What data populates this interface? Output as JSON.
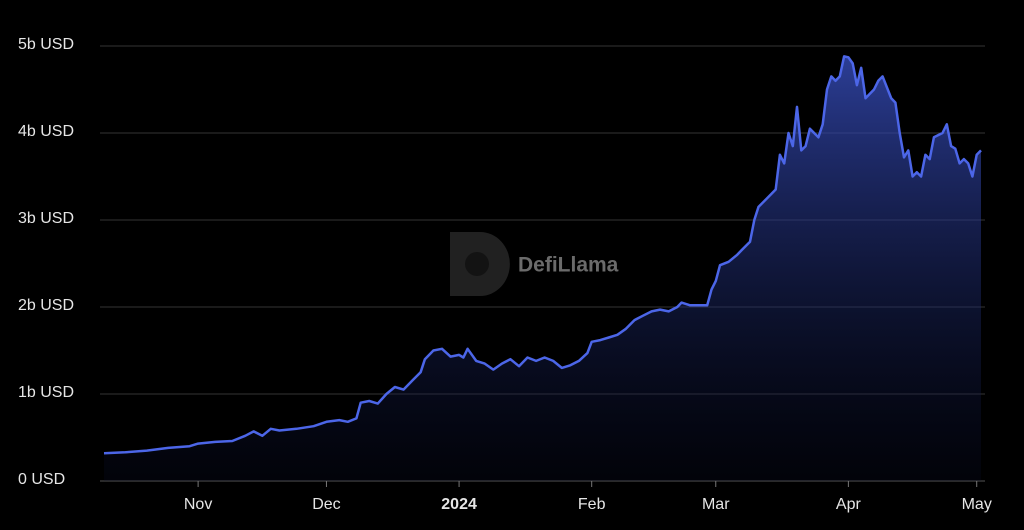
{
  "chart_data": {
    "type": "area",
    "watermark": "DefiLlama",
    "color": "#4c66e8",
    "grid": true,
    "x": [
      0,
      5,
      10,
      15,
      20,
      22,
      26,
      30,
      33,
      35,
      37,
      39,
      41,
      45,
      49,
      52,
      55,
      57,
      59,
      60,
      62,
      64,
      66,
      68,
      70,
      72,
      74,
      75,
      77,
      79,
      81,
      83,
      84,
      85,
      87,
      89,
      91,
      93,
      95,
      97,
      99,
      101,
      103,
      105,
      107,
      109,
      111,
      113,
      114,
      116,
      118,
      120,
      122,
      124,
      126,
      128,
      130,
      132,
      134,
      135,
      137,
      139,
      141,
      142,
      143,
      144,
      146,
      148,
      149,
      151,
      152,
      153,
      155,
      156,
      157,
      158,
      159,
      160,
      161,
      162,
      163,
      164,
      165,
      167,
      168,
      169,
      170,
      171,
      172,
      173,
      174,
      175,
      176,
      177,
      178,
      180,
      181,
      182,
      184,
      185,
      186,
      187,
      188,
      189,
      190,
      191,
      192,
      193,
      194,
      196,
      197,
      198,
      199,
      200,
      201,
      202,
      203,
      204,
      205
    ],
    "values": [
      0.32,
      0.33,
      0.35,
      0.38,
      0.4,
      0.43,
      0.45,
      0.46,
      0.52,
      0.57,
      0.52,
      0.6,
      0.58,
      0.6,
      0.63,
      0.68,
      0.7,
      0.68,
      0.72,
      0.9,
      0.92,
      0.89,
      1.0,
      1.08,
      1.05,
      1.15,
      1.25,
      1.4,
      1.5,
      1.52,
      1.43,
      1.45,
      1.42,
      1.52,
      1.38,
      1.35,
      1.28,
      1.35,
      1.4,
      1.32,
      1.42,
      1.38,
      1.42,
      1.38,
      1.3,
      1.33,
      1.38,
      1.47,
      1.6,
      1.62,
      1.65,
      1.68,
      1.75,
      1.85,
      1.9,
      1.95,
      1.97,
      1.95,
      2.0,
      2.05,
      2.02,
      2.02,
      2.02,
      2.2,
      2.3,
      2.48,
      2.52,
      2.6,
      2.65,
      2.75,
      3.0,
      3.15,
      3.25,
      3.3,
      3.35,
      3.75,
      3.65,
      4.0,
      3.85,
      4.3,
      3.8,
      3.85,
      4.05,
      3.95,
      4.1,
      4.5,
      4.65,
      4.6,
      4.65,
      4.88,
      4.87,
      4.8,
      4.55,
      4.75,
      4.4,
      4.5,
      4.6,
      4.65,
      4.4,
      4.35,
      4.0,
      3.72,
      3.8,
      3.5,
      3.55,
      3.5,
      3.75,
      3.7,
      3.95,
      4.0,
      4.1,
      3.85,
      3.82,
      3.65,
      3.7,
      3.65,
      3.5,
      3.75,
      3.8
    ],
    "xlim": [
      0,
      205
    ],
    "xticks": [
      {
        "value": 22,
        "label": "Nov"
      },
      {
        "value": 52,
        "label": "Dec"
      },
      {
        "value": 83,
        "label": "2024"
      },
      {
        "value": 114,
        "label": "Feb"
      },
      {
        "value": 143,
        "label": "Mar"
      },
      {
        "value": 174,
        "label": "Apr"
      },
      {
        "value": 204,
        "label": "May"
      }
    ],
    "ylim": [
      0,
      5
    ],
    "yticks": [
      {
        "value": 0,
        "label": "0 USD"
      },
      {
        "value": 1,
        "label": "1b USD"
      },
      {
        "value": 2,
        "label": "2b USD"
      },
      {
        "value": 3,
        "label": "3b USD"
      },
      {
        "value": 4,
        "label": "4b USD"
      },
      {
        "value": 5,
        "label": "5b USD"
      }
    ]
  }
}
